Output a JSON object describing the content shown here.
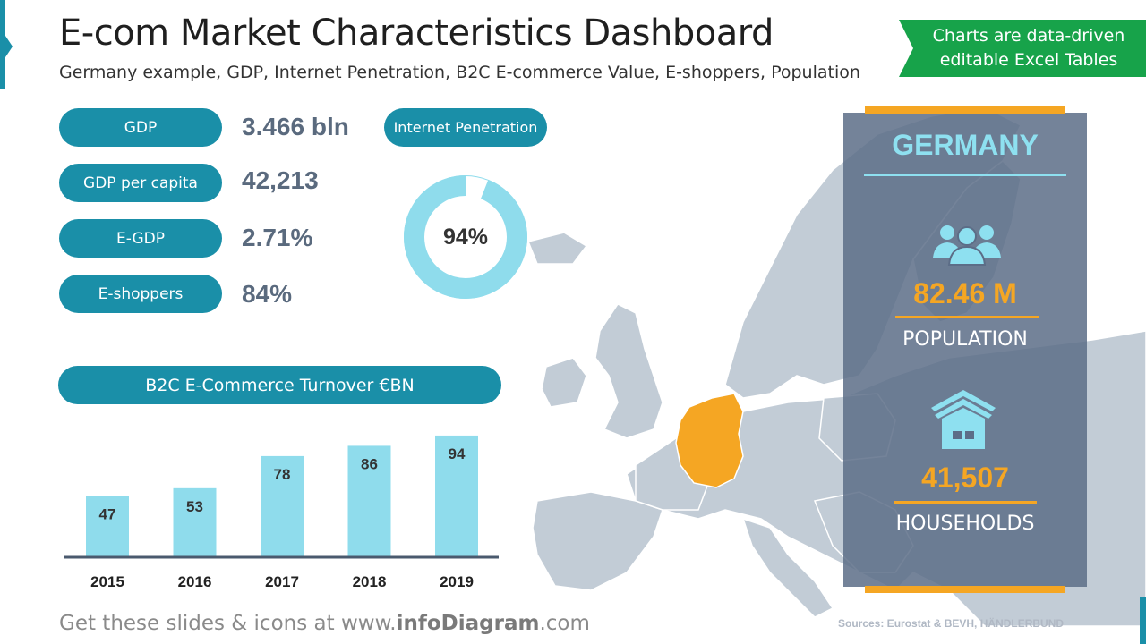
{
  "header": {
    "title": "E-com Market Characteristics Dashboard",
    "subtitle": "Germany example, GDP, Internet Penetration, B2C E-commerce Value, E-shoppers, Population",
    "banner": "Charts are data-driven editable Excel Tables"
  },
  "kpis": [
    {
      "label": "GDP",
      "value": "3.466 bln"
    },
    {
      "label": "GDP per capita",
      "value": "42,213"
    },
    {
      "label": "E-GDP",
      "value": "2.71%"
    },
    {
      "label": "E-shoppers",
      "value": "84%"
    }
  ],
  "internet": {
    "label": "Internet Penetration",
    "value_text": "94%",
    "percent": 94,
    "color": "#8fdcec"
  },
  "turnover": {
    "label": "B2C E-Commerce Turnover €BN"
  },
  "chart_data": {
    "type": "bar",
    "title": "B2C E-Commerce Turnover €BN",
    "categories": [
      "2015",
      "2016",
      "2017",
      "2018",
      "2019"
    ],
    "values": [
      47,
      53,
      78,
      86,
      94
    ],
    "ylim": [
      0,
      110
    ],
    "bar_color": "#8fdcec",
    "grid": false
  },
  "card": {
    "title": "GERMANY",
    "population_value": "82.46 M",
    "population_label": "POPULATION",
    "households_value": "41,507",
    "households_label": "HOUSEHOLDS",
    "people_icon": "people-group-icon",
    "house_icon": "house-icon"
  },
  "footer": {
    "prefix": "Get these slides & icons at www.",
    "brand": "infoDiagram",
    "suffix": ".com",
    "sources": "Sources: Eurostat & BEVH, HÄNDLERBUND"
  },
  "colors": {
    "teal": "#1a8fa8",
    "light_blue": "#8fdcec",
    "orange": "#f5a623",
    "green": "#17a34a",
    "map_gray": "#c2ccd6",
    "germany": "#f5a623"
  }
}
